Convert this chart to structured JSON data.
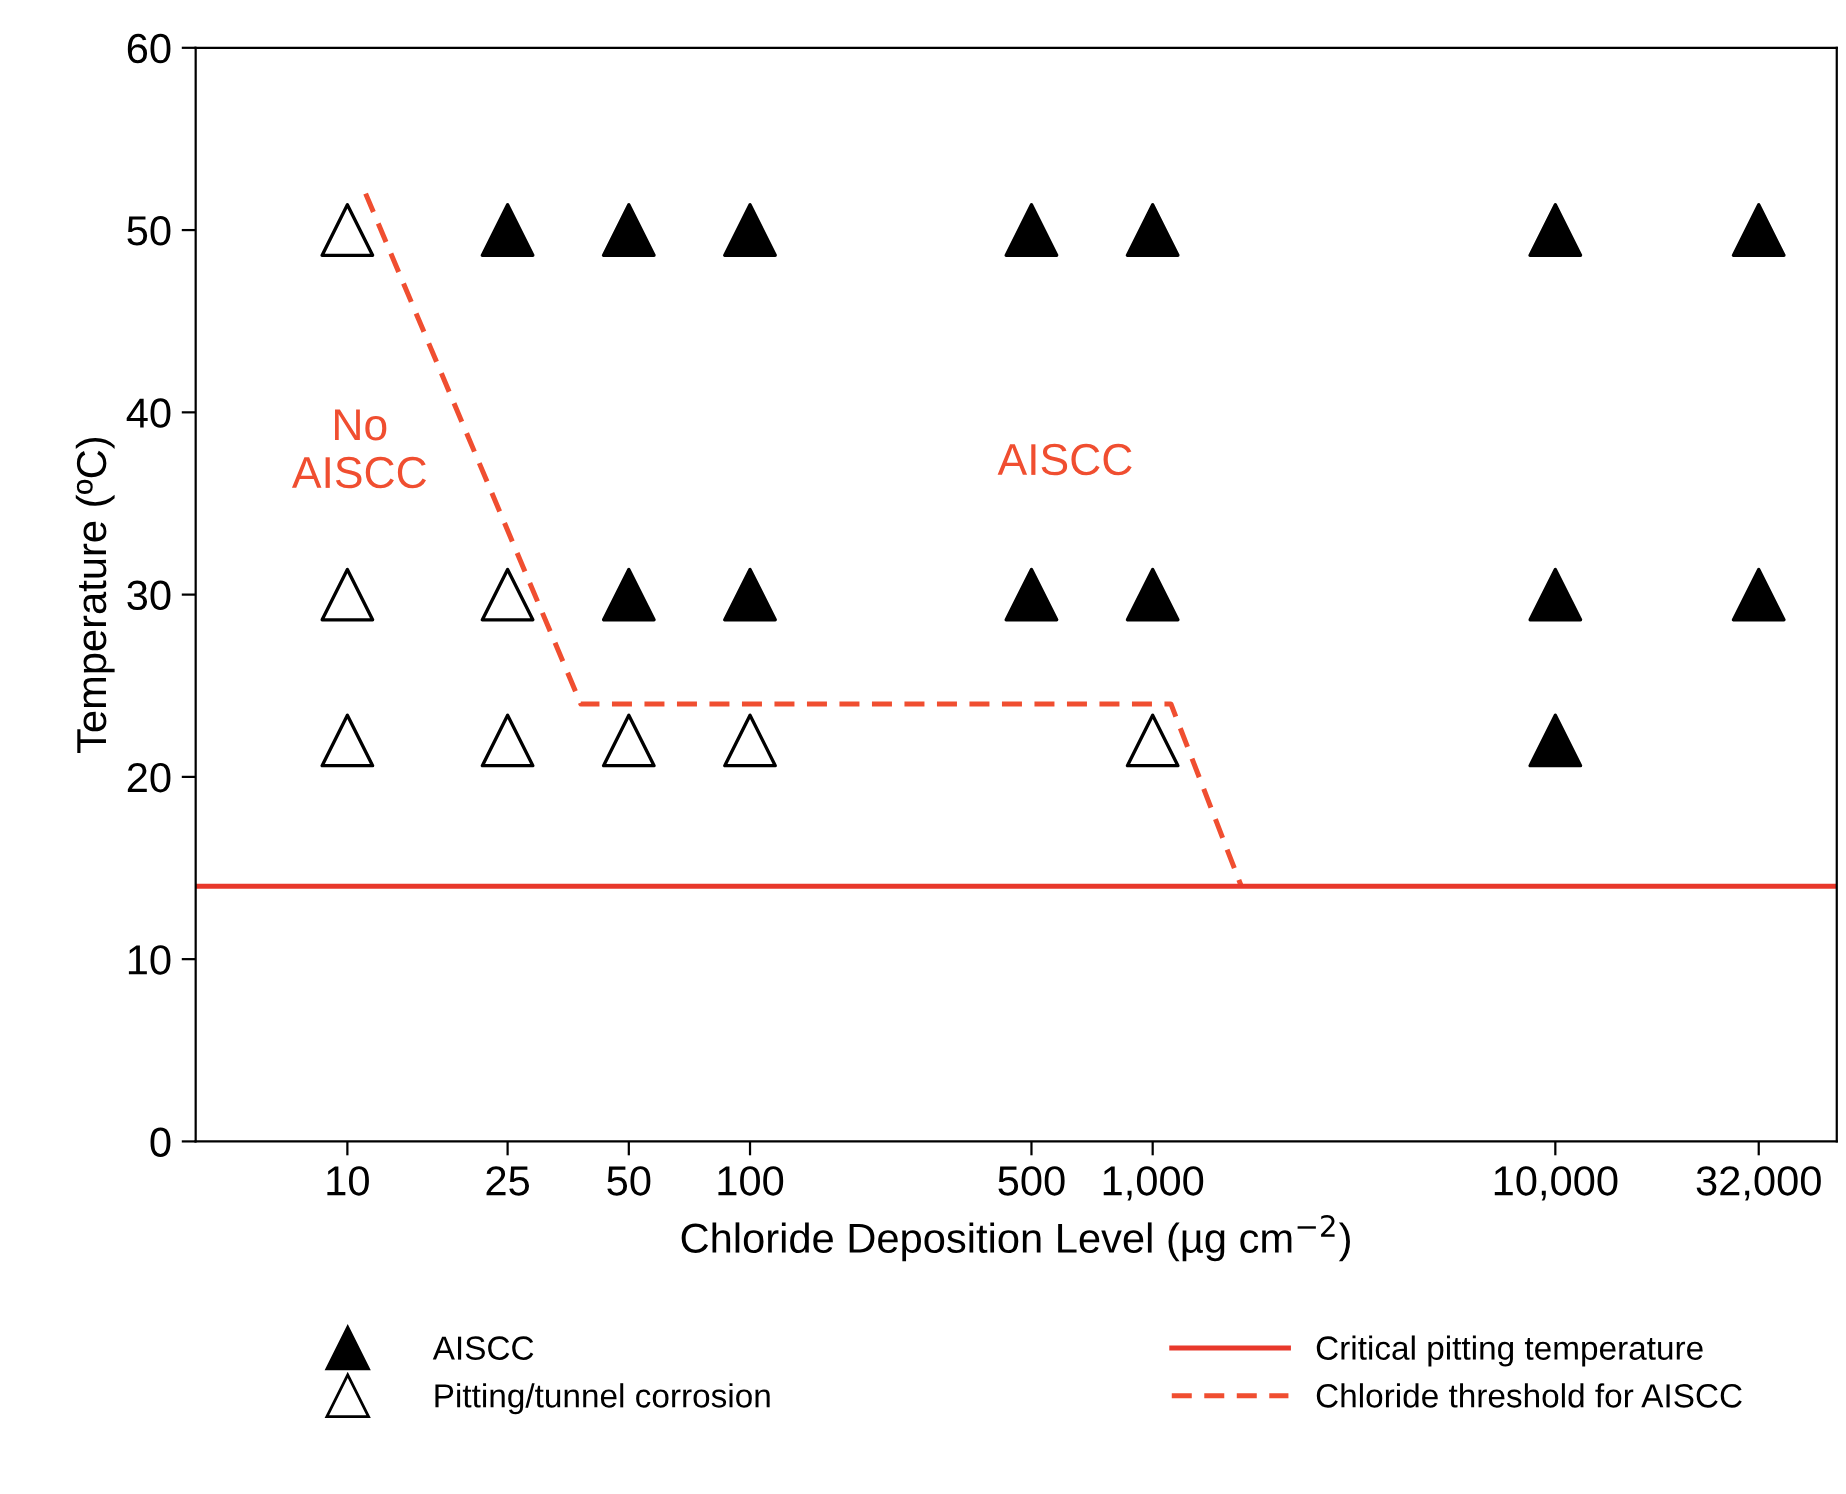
{
  "chart_data": {
    "type": "scatter",
    "xlabel": "Chloride Deposition Level (µg cm$^{−2}$)",
    "ylabel": "Temperature (ºC)",
    "log": "x",
    "xlim": [
      4.2,
      50000
    ],
    "ylim": [
      0,
      60
    ],
    "xticks": [
      10,
      25,
      50,
      100,
      500,
      {
        "value": 1000,
        "label": "1,000"
      },
      {
        "value": 10000,
        "label": "10,000"
      },
      {
        "value": 32000,
        "label": "32,000"
      }
    ],
    "yticks": [
      0,
      10,
      20,
      30,
      40,
      50,
      60
    ],
    "grid": false,
    "legend": "bottom",
    "series": [
      {
        "name": "AISCC",
        "color": "#000000",
        "marker": "triangle",
        "x": [
          25,
          50,
          100,
          500,
          1000,
          10000,
          32000,
          50,
          100,
          500,
          1000,
          10000,
          32000,
          10000
        ],
        "values": [
          50,
          50,
          50,
          50,
          50,
          50,
          50,
          30,
          30,
          30,
          30,
          30,
          30,
          22
        ]
      },
      {
        "name": "Pitting/tunnel corrosion",
        "color": "#ffffff",
        "marker": "triangle",
        "x": [
          10,
          10,
          25,
          10,
          25,
          50,
          100,
          1000
        ],
        "values": [
          50,
          30,
          30,
          22,
          22,
          22,
          22,
          22
        ]
      },
      {
        "name": "Chloride threshold for AISCC",
        "type": "line",
        "color": "#f04e30",
        "line_style": "dashed",
        "x": [
          11.1,
          38,
          1110,
          1660
        ],
        "values": [
          52,
          24,
          24,
          14
        ]
      }
    ],
    "ref_lines": [
      {
        "axis": "y",
        "value": 14,
        "label": "Critical pitting temperature",
        "color": "#e8382b",
        "line_style": "solid"
      }
    ],
    "annotations": [
      "No\nAISCC",
      "AISCC"
    ]
  }
}
